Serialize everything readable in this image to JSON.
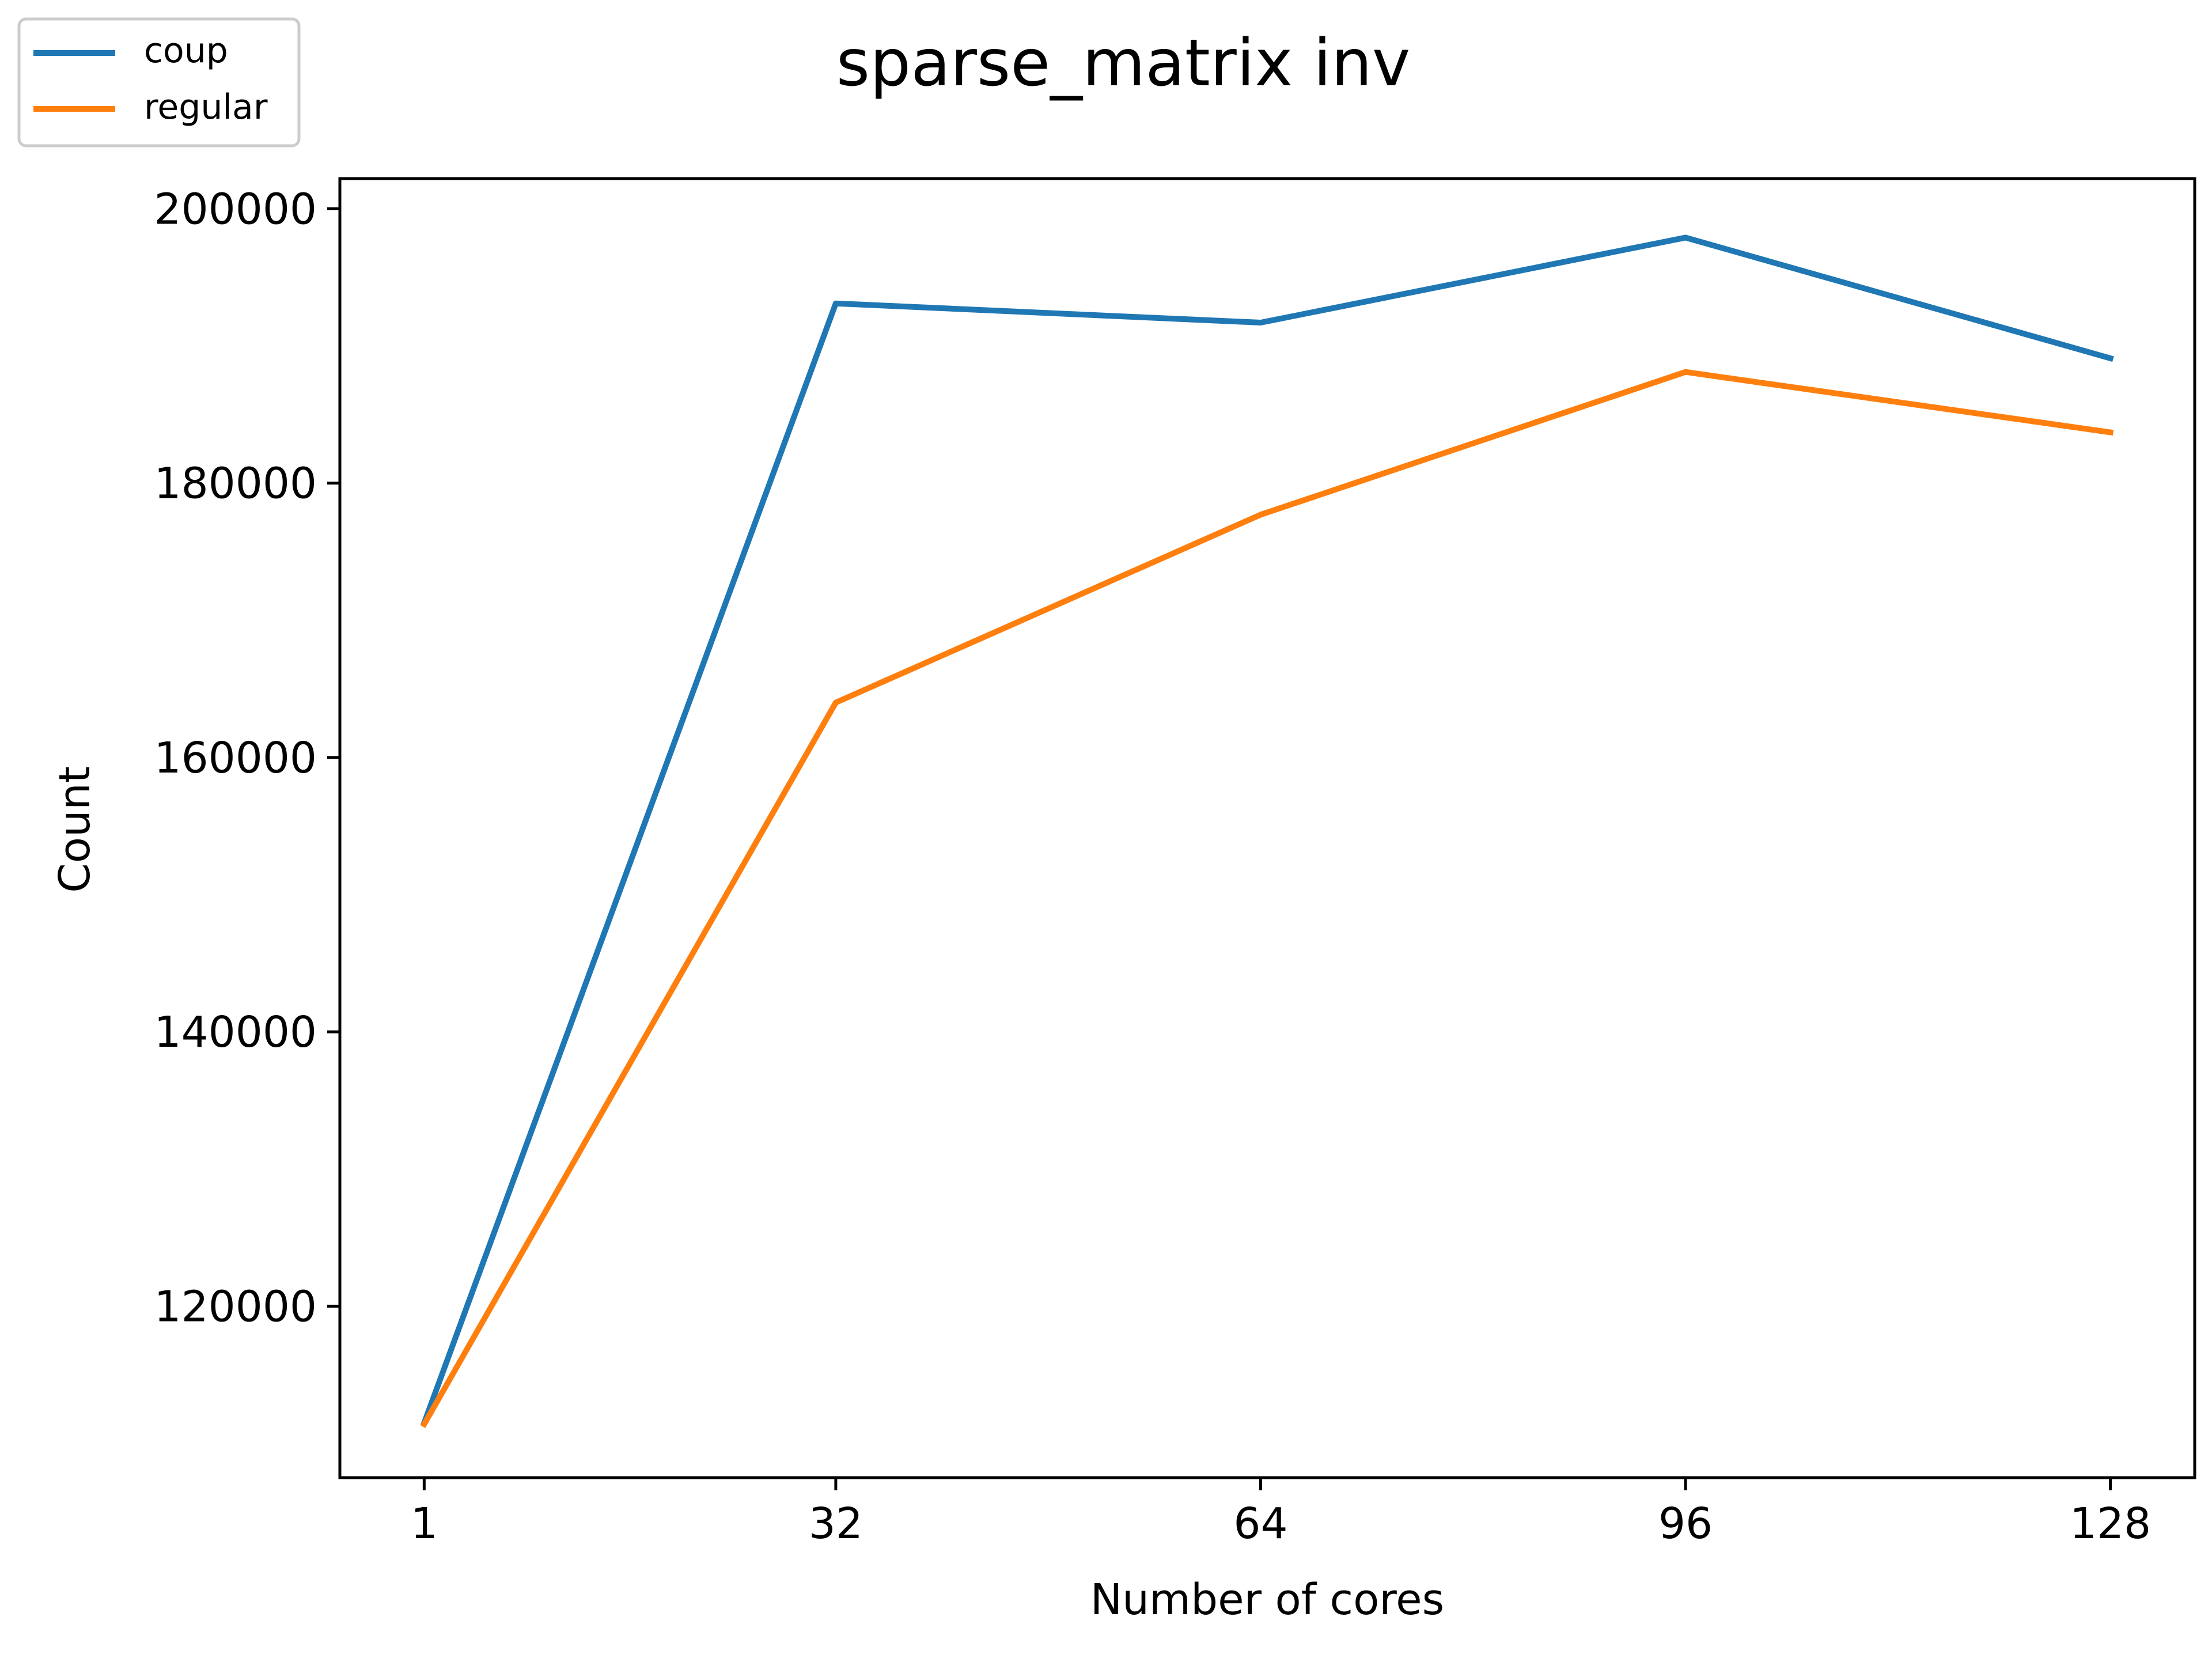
{
  "chart_data": {
    "type": "line",
    "title": "sparse_matrix inv",
    "xlabel": "Number of cores",
    "ylabel": "Count",
    "x": [
      1,
      32,
      64,
      96,
      128
    ],
    "x_ticks": [
      1,
      32,
      64,
      96,
      128
    ],
    "x_tick_labels": [
      "1",
      "32",
      "64",
      "96",
      "128"
    ],
    "xlim": [
      -5.35,
      134.35
    ],
    "y_ticks": [
      120000,
      140000,
      160000,
      180000,
      200000
    ],
    "y_tick_labels": [
      "120000",
      "140000",
      "160000",
      "180000",
      "200000"
    ],
    "ylim": [
      107500,
      202200
    ],
    "grid": false,
    "legend": {
      "placement": "top-left, outside axes"
    },
    "series": [
      {
        "name": "coup",
        "color": "#1f77b4",
        "values": [
          111500,
          193100,
          191700,
          197900,
          189100
        ]
      },
      {
        "name": "regular",
        "color": "#ff7f0e",
        "values": [
          111400,
          164000,
          177700,
          188100,
          183700
        ]
      }
    ]
  }
}
